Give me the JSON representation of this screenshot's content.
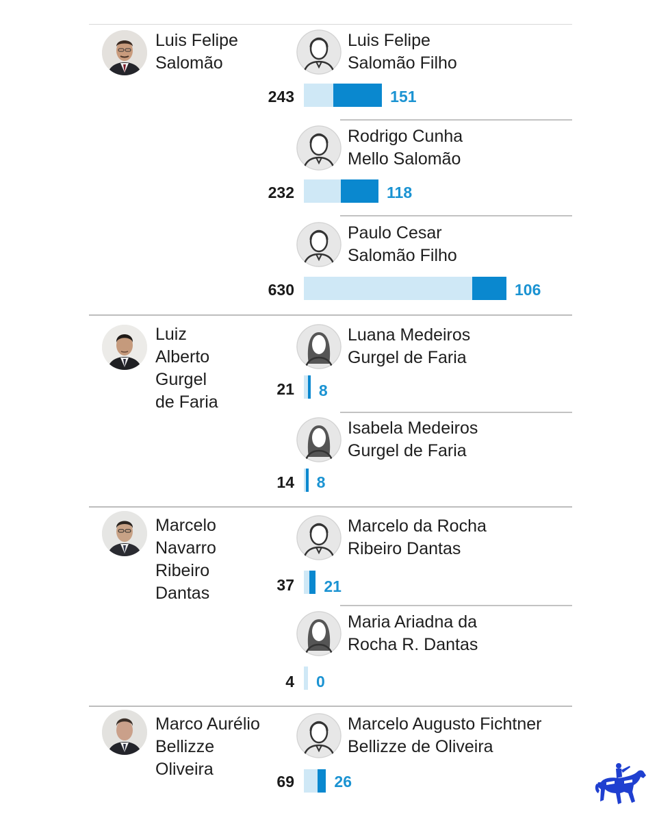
{
  "chart_data": {
    "type": "bar",
    "orientation": "horizontal",
    "colors": {
      "total": "#cfe8f6",
      "part": "#0a88cf",
      "part_label": "#1b93d2"
    },
    "groups": [
      {
        "minister": [
          "Luis Felipe",
          "Salomão"
        ],
        "relatives": [
          {
            "name": [
              "Luis Felipe",
              "Salomão Filho"
            ],
            "gender": "male",
            "total": 243,
            "part": 151
          },
          {
            "name": [
              "Rodrigo Cunha",
              "Mello Salomão"
            ],
            "gender": "male",
            "total": 232,
            "part": 118
          },
          {
            "name": [
              "Paulo Cesar",
              "Salomão Filho"
            ],
            "gender": "male",
            "total": 630,
            "part": 106
          }
        ]
      },
      {
        "minister": [
          "Luiz",
          "Alberto",
          "Gurgel",
          "de Faria"
        ],
        "relatives": [
          {
            "name": [
              "Luana Medeiros",
              "Gurgel de Faria"
            ],
            "gender": "female",
            "total": 21,
            "part": 8
          },
          {
            "name": [
              "Isabela Medeiros",
              "Gurgel de Faria"
            ],
            "gender": "female",
            "total": 14,
            "part": 8
          }
        ]
      },
      {
        "minister": [
          "Marcelo",
          "Navarro",
          "Ribeiro",
          "Dantas"
        ],
        "relatives": [
          {
            "name": [
              "Marcelo da Rocha",
              "Ribeiro Dantas"
            ],
            "gender": "male",
            "total": 37,
            "part": 21
          },
          {
            "name": [
              "Maria Ariadna da",
              "Rocha R. Dantas"
            ],
            "gender": "female",
            "total": 4,
            "part": 0
          }
        ]
      },
      {
        "minister": [
          "Marco Aurélio",
          "Bellizze",
          "Oliveira"
        ],
        "relatives": [
          {
            "name": [
              "Marcelo Augusto Fichtner",
              "Bellizze de Oliveira"
            ],
            "gender": "male",
            "total": 69,
            "part": 26
          }
        ]
      }
    ]
  },
  "logo": {
    "icon": "horse-rider-logo-icon",
    "color": "#1f3fd0"
  }
}
